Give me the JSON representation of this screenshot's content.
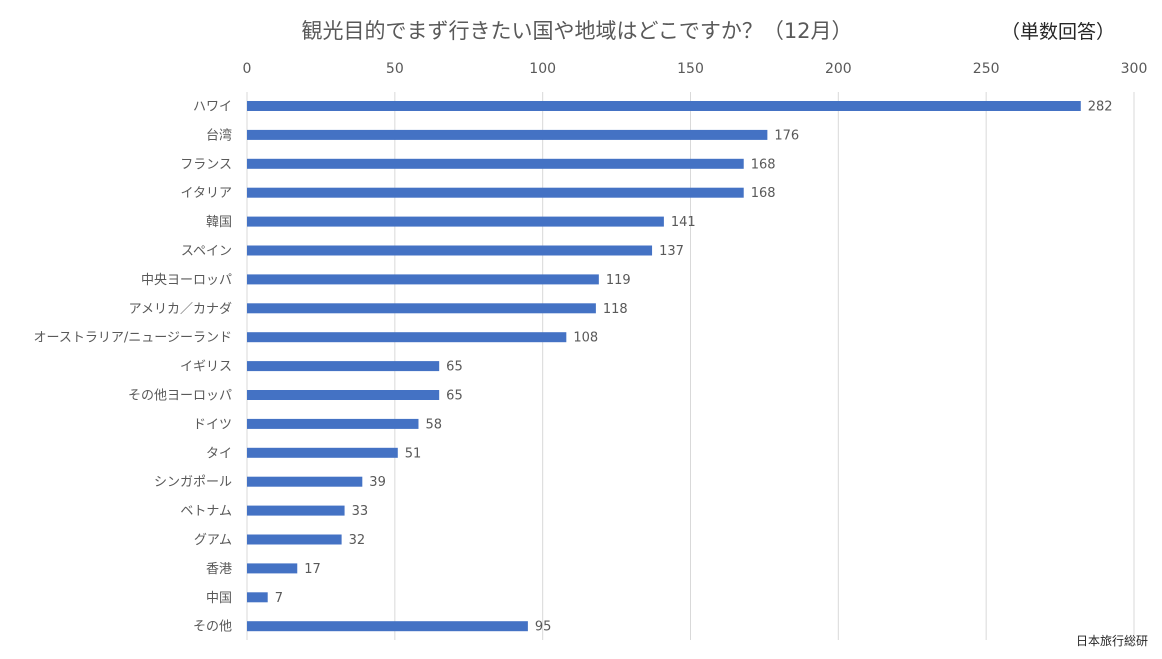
{
  "chart_data": {
    "type": "bar",
    "orientation": "horizontal",
    "title": "観光目的でまず行きたい国や地域はどこですか？（12月）",
    "unit_label": "（単数回答）",
    "source": "日本旅行総研",
    "xlim": [
      0,
      300
    ],
    "x_ticks": [
      0,
      50,
      100,
      150,
      200,
      250,
      300
    ],
    "x_axis_position": "top",
    "grid": true,
    "bar_color": "#4472c4",
    "categories": [
      "ハワイ",
      "台湾",
      "フランス",
      "イタリア",
      "韓国",
      "スペイン",
      "中央ヨーロッパ",
      "アメリカ／カナダ",
      "オーストラリア/ニュージーランド",
      "イギリス",
      "その他ヨーロッパ",
      "ドイツ",
      "タイ",
      "シンガポール",
      "ベトナム",
      "グアム",
      "香港",
      "中国",
      "その他"
    ],
    "values": [
      282,
      176,
      168,
      168,
      141,
      137,
      119,
      118,
      108,
      65,
      65,
      58,
      51,
      39,
      33,
      32,
      17,
      7,
      95
    ]
  }
}
